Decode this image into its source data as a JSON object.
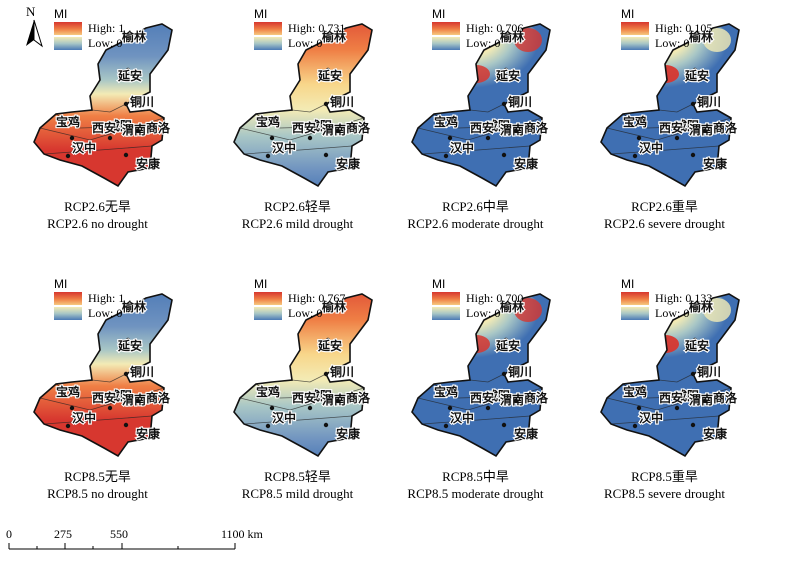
{
  "north_label": "N",
  "legend_title": "MI",
  "panels": [
    {
      "high": "High: 1",
      "low": "Low: 0",
      "caption_cn": "RCP2.6无旱",
      "caption_en": "RCP2.6 no drought",
      "scheme": "none"
    },
    {
      "high": "High: 0.731",
      "low": "Low: 0",
      "caption_cn": "RCP2.6轻旱",
      "caption_en": "RCP2.6 mild drought",
      "scheme": "mild"
    },
    {
      "high": "High: 0.706",
      "low": "Low: 0",
      "caption_cn": "RCP2.6中旱",
      "caption_en": "RCP2.6 moderate drought",
      "scheme": "moderate"
    },
    {
      "high": "High: 0.105",
      "low": "Low: 0",
      "caption_cn": "RCP2.6重旱",
      "caption_en": "RCP2.6 severe drought",
      "scheme": "severe"
    },
    {
      "high": "High: 1",
      "low": "Low: 0",
      "caption_cn": "RCP8.5无旱",
      "caption_en": "RCP8.5 no drought",
      "scheme": "none"
    },
    {
      "high": "High: 0.767",
      "low": "Low: 0",
      "caption_cn": "RCP8.5轻旱",
      "caption_en": "RCP8.5 mild drought",
      "scheme": "mild"
    },
    {
      "high": "High: 0.700",
      "low": "Low: 0",
      "caption_cn": "RCP8.5中旱",
      "caption_en": "RCP8.5 moderate drought",
      "scheme": "moderate"
    },
    {
      "high": "High: 0.133",
      "low": "Low: 0",
      "caption_cn": "RCP8.5重旱",
      "caption_en": "RCP8.5 severe drought",
      "scheme": "severe"
    }
  ],
  "cities": [
    "榆林",
    "延安",
    "铜川",
    "宝鸡",
    "咸阳",
    "西安",
    "渭南",
    "商洛",
    "汉中",
    "安康"
  ],
  "scale": {
    "ticks": [
      "0",
      "275",
      "550",
      "1100 km"
    ]
  },
  "colors": {
    "high": "#d7372f",
    "orange": "#ef7f45",
    "mid": "#f3ebb5",
    "light_blue": "#a9c7c6",
    "low": "#3f6fb2"
  }
}
